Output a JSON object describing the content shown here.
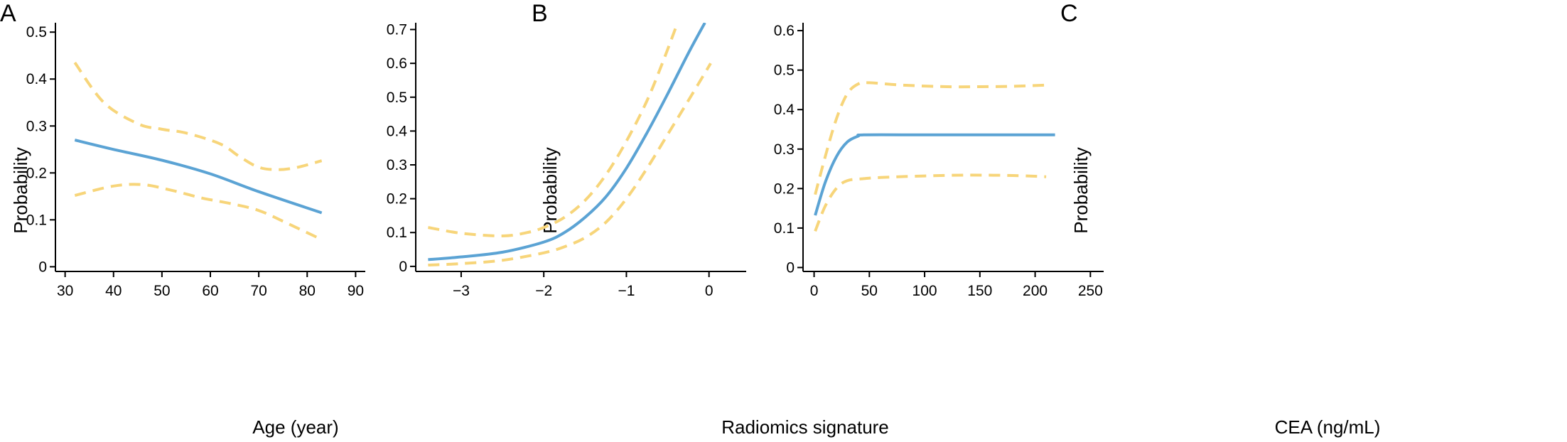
{
  "chart_data": [
    {
      "type": "line",
      "panel_label": "A",
      "xlabel": "Age (year)",
      "ylabel": "Probability",
      "xlim": [
        28,
        92
      ],
      "ylim": [
        -0.01,
        0.52
      ],
      "xticks": [
        30,
        40,
        50,
        60,
        70,
        80,
        90
      ],
      "yticks": [
        0,
        0.1,
        0.2,
        0.3,
        0.4,
        0.5
      ],
      "xtick_labels": [
        "30",
        "40",
        "50",
        "60",
        "70",
        "80",
        "90"
      ],
      "ytick_labels": [
        "0",
        "0.1",
        "0.2",
        "0.3",
        "0.4",
        "0.5"
      ],
      "series": [
        {
          "role": "fit",
          "color": "#5ba3d4",
          "x": [
            32,
            40,
            50,
            60,
            70,
            83
          ],
          "y": [
            0.27,
            0.25,
            0.227,
            0.198,
            0.16,
            0.115
          ]
        },
        {
          "role": "upper-ci",
          "color": "#f7d57a",
          "x": [
            32,
            38,
            45,
            50,
            55,
            62,
            66,
            70,
            74,
            78,
            83
          ],
          "y": [
            0.435,
            0.35,
            0.305,
            0.293,
            0.285,
            0.262,
            0.235,
            0.212,
            0.207,
            0.212,
            0.226
          ]
        },
        {
          "role": "lower-ci",
          "color": "#f7d57a",
          "x": [
            32,
            40,
            46,
            52,
            58,
            64,
            70,
            76,
            83
          ],
          "y": [
            0.152,
            0.172,
            0.175,
            0.163,
            0.147,
            0.135,
            0.12,
            0.092,
            0.058
          ]
        }
      ]
    },
    {
      "type": "line",
      "panel_label": "B",
      "xlabel": "Radiomics signature",
      "ylabel": "Probability",
      "xlim": [
        -3.55,
        0.45
      ],
      "ylim": [
        -0.015,
        0.72
      ],
      "xticks": [
        -3,
        -2,
        -1,
        0
      ],
      "yticks": [
        0,
        0.1,
        0.2,
        0.3,
        0.4,
        0.5,
        0.6,
        0.7
      ],
      "xtick_labels": [
        "−3",
        "−2",
        "−1",
        "0"
      ],
      "ytick_labels": [
        "0",
        "0.1",
        "0.2",
        "0.3",
        "0.4",
        "0.5",
        "0.6",
        "0.7"
      ],
      "series": [
        {
          "role": "fit",
          "color": "#5ba3d4",
          "x": [
            -3.4,
            -3.0,
            -2.5,
            -2.0,
            -1.75,
            -1.5,
            -1.25,
            -1.0,
            -0.75,
            -0.5,
            -0.25,
            -0.05
          ],
          "y": [
            0.02,
            0.028,
            0.042,
            0.072,
            0.1,
            0.145,
            0.205,
            0.29,
            0.395,
            0.51,
            0.63,
            0.72
          ]
        },
        {
          "role": "upper-ci",
          "color": "#f7d57a",
          "x": [
            -3.4,
            -3.0,
            -2.5,
            -2.2,
            -2.0,
            -1.75,
            -1.5,
            -1.25,
            -1.0,
            -0.75,
            -0.55,
            -0.38
          ],
          "y": [
            0.115,
            0.098,
            0.09,
            0.1,
            0.115,
            0.145,
            0.195,
            0.27,
            0.37,
            0.49,
            0.61,
            0.72
          ]
        },
        {
          "role": "lower-ci",
          "color": "#f7d57a",
          "x": [
            -3.4,
            -3.0,
            -2.5,
            -2.0,
            -1.75,
            -1.5,
            -1.25,
            -1.0,
            -0.75,
            -0.5,
            -0.25,
            0.02
          ],
          "y": [
            0.004,
            0.008,
            0.018,
            0.04,
            0.058,
            0.085,
            0.13,
            0.2,
            0.29,
            0.39,
            0.49,
            0.6
          ]
        }
      ]
    },
    {
      "type": "line",
      "panel_label": "C",
      "xlabel": "CEA (ng/mL)",
      "ylabel": "Probability",
      "xlim": [
        -10,
        262
      ],
      "ylim": [
        -0.01,
        0.62
      ],
      "xticks": [
        0,
        50,
        100,
        150,
        200,
        250
      ],
      "yticks": [
        0,
        0.1,
        0.2,
        0.3,
        0.4,
        0.5,
        0.6
      ],
      "xtick_labels": [
        "0",
        "50",
        "100",
        "150",
        "200",
        "250"
      ],
      "ytick_labels": [
        "0",
        "0.1",
        "0.2",
        "0.3",
        "0.4",
        "0.5",
        "0.6"
      ],
      "series": [
        {
          "role": "fit",
          "color": "#5ba3d4",
          "x": [
            1,
            10,
            20,
            30,
            40,
            45,
            100,
            160,
            218
          ],
          "y": [
            0.132,
            0.215,
            0.28,
            0.318,
            0.333,
            0.336,
            0.336,
            0.336,
            0.336
          ]
        },
        {
          "role": "upper-ci",
          "color": "#f7d57a",
          "x": [
            1,
            10,
            20,
            30,
            40,
            50,
            80,
            120,
            150,
            180,
            210
          ],
          "y": [
            0.185,
            0.28,
            0.375,
            0.44,
            0.465,
            0.468,
            0.462,
            0.458,
            0.458,
            0.459,
            0.462
          ]
        },
        {
          "role": "lower-ci",
          "color": "#f7d57a",
          "x": [
            1,
            10,
            20,
            30,
            45,
            60,
            100,
            140,
            180,
            210
          ],
          "y": [
            0.092,
            0.155,
            0.2,
            0.22,
            0.225,
            0.228,
            0.232,
            0.234,
            0.233,
            0.23
          ]
        }
      ]
    }
  ]
}
